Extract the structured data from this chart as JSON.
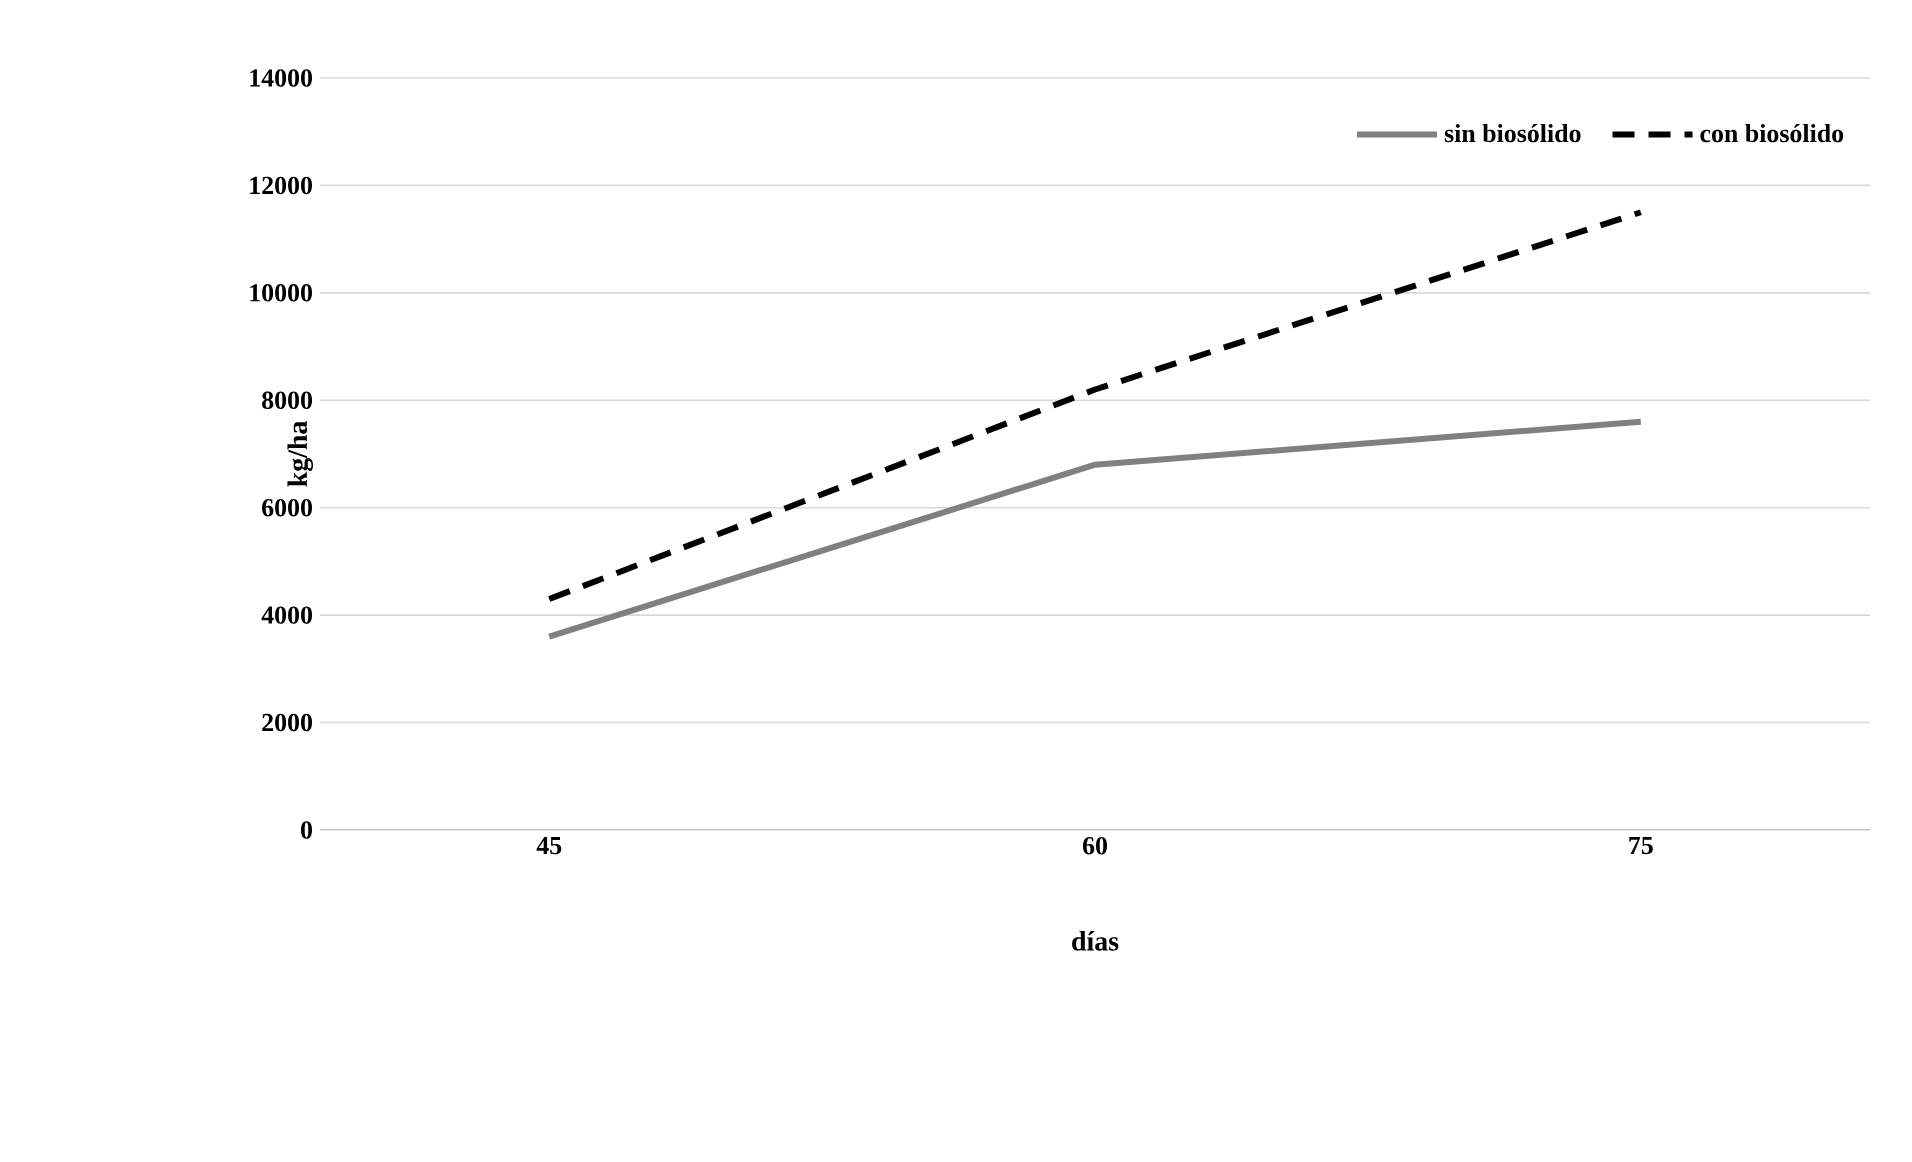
{
  "chart_data": {
    "type": "line",
    "xlabel": "días",
    "ylabel": "kg/ha",
    "categories": [
      "45",
      "60",
      "75"
    ],
    "series": [
      {
        "name": "sin biosólido",
        "color": "#808080",
        "line_style": "solid",
        "values": [
          3600,
          6800,
          7600
        ]
      },
      {
        "name": "con biosólido",
        "color": "#000000",
        "line_style": "dashed",
        "values": [
          4300,
          8200,
          11500
        ]
      }
    ],
    "ylim": [
      0,
      14000
    ],
    "yticks": [
      0,
      2000,
      4000,
      6000,
      8000,
      10000,
      12000,
      14000
    ],
    "grid": "y",
    "legend": "top right",
    "marker": "none"
  }
}
